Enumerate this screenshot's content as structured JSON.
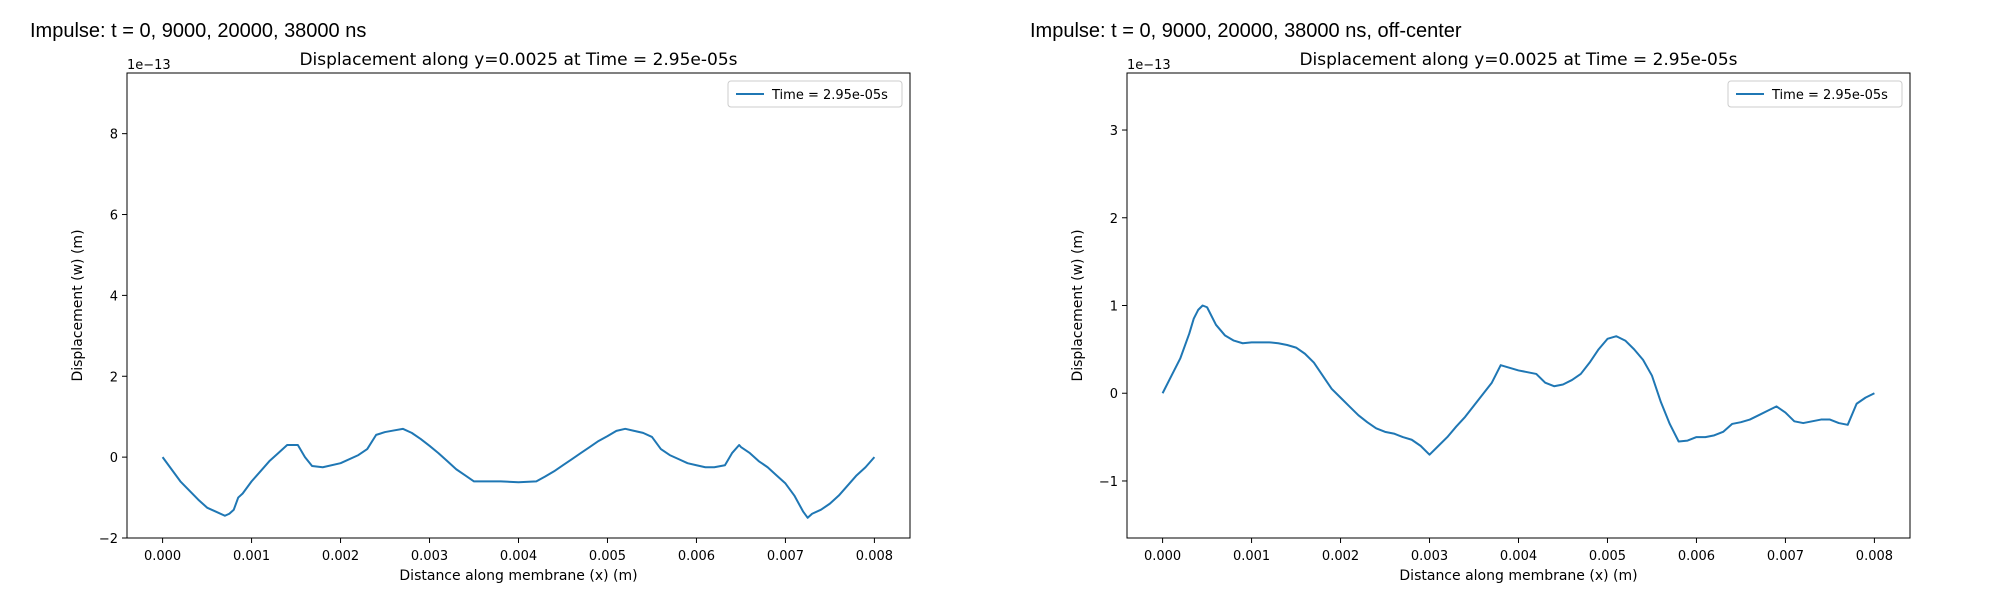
{
  "suptitles": [
    "Impulse: t = 0, 9000, 20000, 38000 ns",
    "Impulse: t = 0, 9000, 20000, 38000 ns, off-center"
  ],
  "chart_data": [
    {
      "type": "line",
      "title": "Displacement along y=0.0025 at Time = 2.95e-05s",
      "xlabel": "Distance along membrane (x) (m)",
      "ylabel": "Displacement (w) (m)",
      "y_exponent_label": "1e−13",
      "xlim": [
        -0.0004,
        0.0084
      ],
      "ylim": [
        -2.0,
        9.5
      ],
      "xticks": [
        0.0,
        0.001,
        0.002,
        0.003,
        0.004,
        0.005,
        0.006,
        0.007,
        0.008
      ],
      "xtick_labels": [
        "0.000",
        "0.001",
        "0.002",
        "0.003",
        "0.004",
        "0.005",
        "0.006",
        "0.007",
        "0.008"
      ],
      "yticks": [
        -2,
        0,
        2,
        4,
        6,
        8
      ],
      "ytick_labels": [
        "−2",
        "0",
        "2",
        "4",
        "6",
        "8"
      ],
      "legend_position": "top-right",
      "grid": false,
      "series": [
        {
          "name": "Time = 2.95e-05s",
          "color": "#1f77b4",
          "x": [
            0.0,
            0.0002,
            0.0004,
            0.0005,
            0.0006,
            0.0007,
            0.00075,
            0.0008,
            0.00085,
            0.0009,
            0.001,
            0.0011,
            0.0012,
            0.0013,
            0.0014,
            0.00152,
            0.0016,
            0.00168,
            0.0018,
            0.002,
            0.0022,
            0.0023,
            0.0024,
            0.0025,
            0.0026,
            0.0027,
            0.0028,
            0.0029,
            0.003,
            0.0031,
            0.0032,
            0.0033,
            0.0034,
            0.0035,
            0.0036,
            0.0038,
            0.004,
            0.0042,
            0.0043,
            0.0044,
            0.0045,
            0.0046,
            0.0047,
            0.0048,
            0.0049,
            0.005,
            0.0051,
            0.0052,
            0.0053,
            0.0054,
            0.0055,
            0.0056,
            0.0057,
            0.0058,
            0.0059,
            0.006,
            0.0061,
            0.0062,
            0.00632,
            0.0064,
            0.00648,
            0.0065,
            0.0066,
            0.0067,
            0.0068,
            0.0069,
            0.007,
            0.0071,
            0.0072,
            0.00725,
            0.0073,
            0.0074,
            0.0075,
            0.0076,
            0.0077,
            0.0078,
            0.0079,
            0.008
          ],
          "y": [
            0.0,
            -0.6,
            -1.05,
            -1.25,
            -1.35,
            -1.45,
            -1.4,
            -1.3,
            -1.0,
            -0.9,
            -0.6,
            -0.35,
            -0.1,
            0.1,
            0.3,
            0.3,
            0.0,
            -0.22,
            -0.25,
            -0.15,
            0.05,
            0.2,
            0.55,
            0.62,
            0.66,
            0.7,
            0.6,
            0.45,
            0.28,
            0.1,
            -0.1,
            -0.3,
            -0.45,
            -0.6,
            -0.6,
            -0.6,
            -0.62,
            -0.6,
            -0.48,
            -0.35,
            -0.2,
            -0.05,
            0.1,
            0.25,
            0.4,
            0.52,
            0.65,
            0.7,
            0.65,
            0.6,
            0.5,
            0.2,
            0.05,
            -0.05,
            -0.15,
            -0.2,
            -0.25,
            -0.25,
            -0.2,
            0.1,
            0.3,
            0.25,
            0.1,
            -0.1,
            -0.25,
            -0.45,
            -0.65,
            -0.95,
            -1.35,
            -1.5,
            -1.4,
            -1.3,
            -1.15,
            -0.95,
            -0.7,
            -0.45,
            -0.25,
            0.0
          ]
        }
      ]
    },
    {
      "type": "line",
      "title": "Displacement along y=0.0025 at Time = 2.95e-05s",
      "xlabel": "Distance along membrane (x) (m)",
      "ylabel": "Displacement (w) (m)",
      "y_exponent_label": "1e−13",
      "xlim": [
        -0.0004,
        0.0084
      ],
      "ylim": [
        -1.65,
        3.65
      ],
      "xticks": [
        0.0,
        0.001,
        0.002,
        0.003,
        0.004,
        0.005,
        0.006,
        0.007,
        0.008
      ],
      "xtick_labels": [
        "0.000",
        "0.001",
        "0.002",
        "0.003",
        "0.004",
        "0.005",
        "0.006",
        "0.007",
        "0.008"
      ],
      "yticks": [
        -1,
        0,
        1,
        2,
        3
      ],
      "ytick_labels": [
        "−1",
        "0",
        "1",
        "2",
        "3"
      ],
      "legend_position": "top-right",
      "grid": false,
      "series": [
        {
          "name": "Time = 2.95e-05s",
          "color": "#1f77b4",
          "x": [
            0.0,
            0.0001,
            0.0002,
            0.0003,
            0.00035,
            0.0004,
            0.00045,
            0.0005,
            0.0006,
            0.0007,
            0.0008,
            0.0009,
            0.001,
            0.0012,
            0.0013,
            0.0014,
            0.0015,
            0.0016,
            0.0017,
            0.0018,
            0.0019,
            0.002,
            0.0021,
            0.0022,
            0.0023,
            0.0024,
            0.0025,
            0.0026,
            0.0027,
            0.0028,
            0.0029,
            0.003,
            0.0031,
            0.0032,
            0.0033,
            0.0034,
            0.0035,
            0.0036,
            0.0037,
            0.0038,
            0.0039,
            0.004,
            0.0041,
            0.0042,
            0.0043,
            0.0044,
            0.0045,
            0.0046,
            0.0047,
            0.0048,
            0.0049,
            0.005,
            0.0051,
            0.0052,
            0.0053,
            0.0054,
            0.0055,
            0.0056,
            0.0057,
            0.0058,
            0.0059,
            0.006,
            0.0061,
            0.0062,
            0.0063,
            0.0064,
            0.0065,
            0.0066,
            0.0067,
            0.0068,
            0.0069,
            0.007,
            0.0071,
            0.0072,
            0.0073,
            0.0074,
            0.0075,
            0.0076,
            0.0077,
            0.0078,
            0.0079,
            0.008
          ],
          "y": [
            0.0,
            0.2,
            0.4,
            0.68,
            0.85,
            0.95,
            1.0,
            0.98,
            0.78,
            0.66,
            0.6,
            0.57,
            0.58,
            0.58,
            0.57,
            0.55,
            0.52,
            0.45,
            0.35,
            0.2,
            0.05,
            -0.05,
            -0.15,
            -0.25,
            -0.33,
            -0.4,
            -0.44,
            -0.46,
            -0.5,
            -0.53,
            -0.6,
            -0.7,
            -0.6,
            -0.5,
            -0.38,
            -0.27,
            -0.14,
            -0.01,
            0.12,
            0.32,
            0.29,
            0.26,
            0.24,
            0.22,
            0.12,
            0.08,
            0.1,
            0.15,
            0.22,
            0.35,
            0.5,
            0.62,
            0.65,
            0.6,
            0.5,
            0.38,
            0.2,
            -0.1,
            -0.35,
            -0.55,
            -0.54,
            -0.5,
            -0.5,
            -0.48,
            -0.44,
            -0.35,
            -0.33,
            -0.3,
            -0.25,
            -0.2,
            -0.15,
            -0.22,
            -0.32,
            -0.34,
            -0.32,
            -0.3,
            -0.3,
            -0.34,
            -0.36,
            -0.12,
            -0.05,
            0.0
          ]
        }
      ]
    }
  ]
}
